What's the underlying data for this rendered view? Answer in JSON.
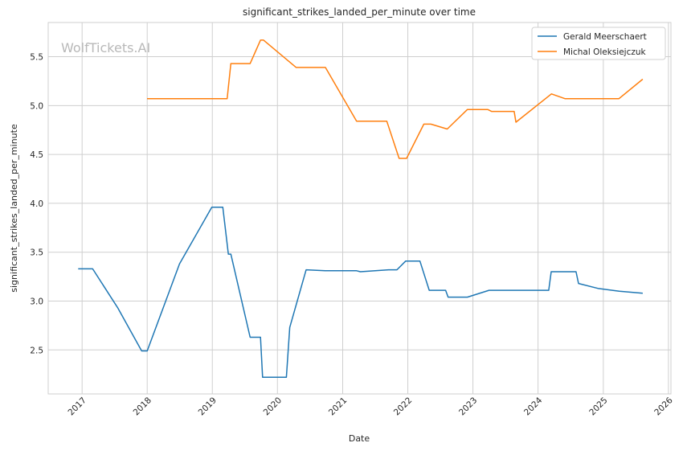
{
  "chart_data": {
    "type": "line",
    "title": "significant_strikes_landed_per_minute over time",
    "xlabel": "Date",
    "ylabel": "significant_strikes_landed_per_minute",
    "watermark": "WolfTickets.AI",
    "xlim": [
      "2016-06-25",
      "2026-01-15"
    ],
    "ylim": [
      2.05,
      5.85
    ],
    "x_ticks": [
      "2017-01-01",
      "2018-01-01",
      "2019-01-01",
      "2020-01-01",
      "2021-01-01",
      "2022-01-01",
      "2023-01-01",
      "2024-01-01",
      "2025-01-01",
      "2026-01-01"
    ],
    "x_tick_labels": [
      "2017",
      "2018",
      "2019",
      "2020",
      "2021",
      "2022",
      "2023",
      "2024",
      "2025",
      "2026"
    ],
    "y_ticks": [
      2.5,
      3.0,
      3.5,
      4.0,
      4.5,
      5.0,
      5.5
    ],
    "y_tick_labels": [
      "2.5",
      "3.0",
      "3.5",
      "4.0",
      "4.5",
      "5.0",
      "5.5"
    ],
    "grid": true,
    "legend_position": "top-right",
    "series": [
      {
        "name": "Gerald Meerschaert",
        "color": "#1f77b4",
        "points": [
          [
            "2016-12-10",
            3.33
          ],
          [
            "2017-03-01",
            3.33
          ],
          [
            "2017-07-20",
            2.93
          ],
          [
            "2017-12-01",
            2.49
          ],
          [
            "2018-01-01",
            2.49
          ],
          [
            "2018-07-01",
            3.38
          ],
          [
            "2018-12-29",
            3.96
          ],
          [
            "2019-03-01",
            3.96
          ],
          [
            "2019-04-01",
            3.48
          ],
          [
            "2019-04-15",
            3.48
          ],
          [
            "2019-08-01",
            2.63
          ],
          [
            "2019-09-28",
            2.63
          ],
          [
            "2019-10-10",
            2.22
          ],
          [
            "2020-02-20",
            2.22
          ],
          [
            "2020-03-10",
            2.73
          ],
          [
            "2020-06-10",
            3.32
          ],
          [
            "2020-09-25",
            3.31
          ],
          [
            "2021-03-20",
            3.31
          ],
          [
            "2021-04-10",
            3.3
          ],
          [
            "2021-09-15",
            3.32
          ],
          [
            "2021-11-01",
            3.32
          ],
          [
            "2021-12-20",
            3.41
          ],
          [
            "2022-03-10",
            3.41
          ],
          [
            "2022-05-01",
            3.11
          ],
          [
            "2022-08-01",
            3.11
          ],
          [
            "2022-08-15",
            3.04
          ],
          [
            "2022-12-01",
            3.04
          ],
          [
            "2023-04-01",
            3.11
          ],
          [
            "2024-03-01",
            3.11
          ],
          [
            "2024-03-15",
            3.3
          ],
          [
            "2024-08-01",
            3.3
          ],
          [
            "2024-08-15",
            3.18
          ],
          [
            "2024-12-01",
            3.13
          ],
          [
            "2025-04-01",
            3.1
          ],
          [
            "2025-08-10",
            3.08
          ]
        ]
      },
      {
        "name": "Michal Oleksiejczuk",
        "color": "#ff7f0e",
        "points": [
          [
            "2017-12-31",
            5.07
          ],
          [
            "2019-03-25",
            5.07
          ],
          [
            "2019-04-15",
            5.43
          ],
          [
            "2019-08-01",
            5.43
          ],
          [
            "2019-09-28",
            5.67
          ],
          [
            "2019-10-15",
            5.67
          ],
          [
            "2020-04-15",
            5.39
          ],
          [
            "2020-09-26",
            5.39
          ],
          [
            "2021-03-20",
            4.84
          ],
          [
            "2021-09-05",
            4.84
          ],
          [
            "2021-11-13",
            4.46
          ],
          [
            "2021-12-25",
            4.46
          ],
          [
            "2022-04-01",
            4.81
          ],
          [
            "2022-05-10",
            4.81
          ],
          [
            "2022-08-10",
            4.76
          ],
          [
            "2022-12-01",
            4.96
          ],
          [
            "2023-03-25",
            4.96
          ],
          [
            "2023-04-15",
            4.94
          ],
          [
            "2023-08-20",
            4.94
          ],
          [
            "2023-08-30",
            4.83
          ],
          [
            "2024-03-16",
            5.12
          ],
          [
            "2024-06-01",
            5.07
          ],
          [
            "2025-03-29",
            5.07
          ],
          [
            "2025-08-10",
            5.27
          ]
        ]
      }
    ]
  }
}
